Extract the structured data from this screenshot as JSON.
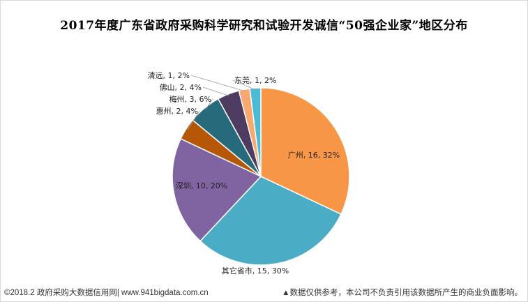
{
  "chart_data": {
    "type": "pie",
    "title": "2017年度广东省政府采购科学研究和试验开发诚信“50强企业家”地区分布",
    "slices": [
      {
        "label": "广州",
        "value": 16,
        "percent": "32%",
        "color": "#f79646"
      },
      {
        "label": "其它省市",
        "value": 15,
        "percent": "30%",
        "color": "#4bacc6"
      },
      {
        "label": "深圳",
        "value": 10,
        "percent": "20%",
        "color": "#8064a2"
      },
      {
        "label": "惠州",
        "value": 2,
        "percent": "4%",
        "color": "#b65708"
      },
      {
        "label": "梅州",
        "value": 3,
        "percent": "6%",
        "color": "#276a7c"
      },
      {
        "label": "佛山",
        "value": 2,
        "percent": "4%",
        "color": "#4d3b62"
      },
      {
        "label": "清远",
        "value": 1,
        "percent": "2%",
        "color": "#f9a870"
      },
      {
        "label": "东莞",
        "value": 1,
        "percent": "2%",
        "color": "#4bbcd8"
      }
    ]
  },
  "footer": {
    "left": "©2018.2 政府采购大数据信用网| www.941bigdata.com.cn",
    "right": "▲数据仅供参考，本公司不负责引用该数据所产生的商业负面影响。"
  }
}
